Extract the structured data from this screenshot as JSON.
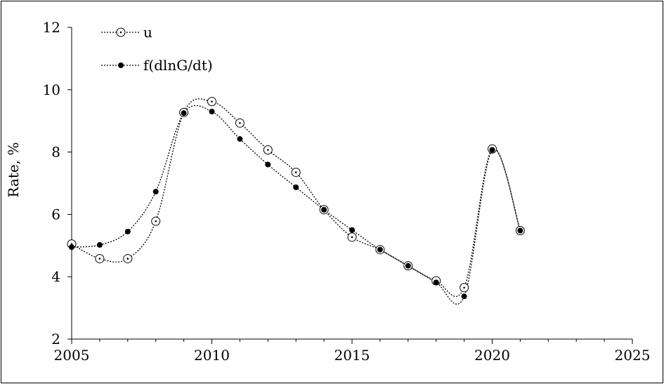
{
  "chart_data": {
    "type": "scatter",
    "title": "",
    "xlabel": "",
    "ylabel": "Rate, %",
    "xlim": [
      2005,
      2025
    ],
    "ylim": [
      2,
      12
    ],
    "xticks": [
      2005,
      2010,
      2015,
      2020,
      2025
    ],
    "yticks": [
      2,
      4,
      6,
      8,
      10,
      12
    ],
    "grid": false,
    "legend_position": "top-left",
    "series": [
      {
        "name": "u",
        "marker": "open-circle-dot",
        "color": "#000000",
        "x": [
          2005,
          2006,
          2007,
          2008,
          2009,
          2010,
          2011,
          2012,
          2013,
          2014,
          2015,
          2016,
          2017,
          2018,
          2019,
          2020,
          2021
        ],
        "y": [
          5.05,
          4.58,
          4.58,
          5.78,
          9.27,
          9.62,
          8.93,
          8.07,
          7.35,
          6.15,
          5.27,
          4.87,
          4.35,
          3.87,
          3.65,
          8.1,
          5.48
        ]
      },
      {
        "name": "f(dlnG/dt)",
        "marker": "filled-circle",
        "color": "#000000",
        "x": [
          2005,
          2006,
          2007,
          2008,
          2009,
          2010,
          2011,
          2012,
          2013,
          2014,
          2015,
          2016,
          2017,
          2018,
          2019,
          2020,
          2021
        ],
        "y": [
          4.95,
          5.02,
          5.45,
          6.73,
          9.25,
          9.3,
          8.42,
          7.6,
          6.87,
          6.15,
          5.5,
          4.87,
          4.35,
          3.82,
          3.37,
          8.07,
          5.48
        ]
      }
    ]
  }
}
